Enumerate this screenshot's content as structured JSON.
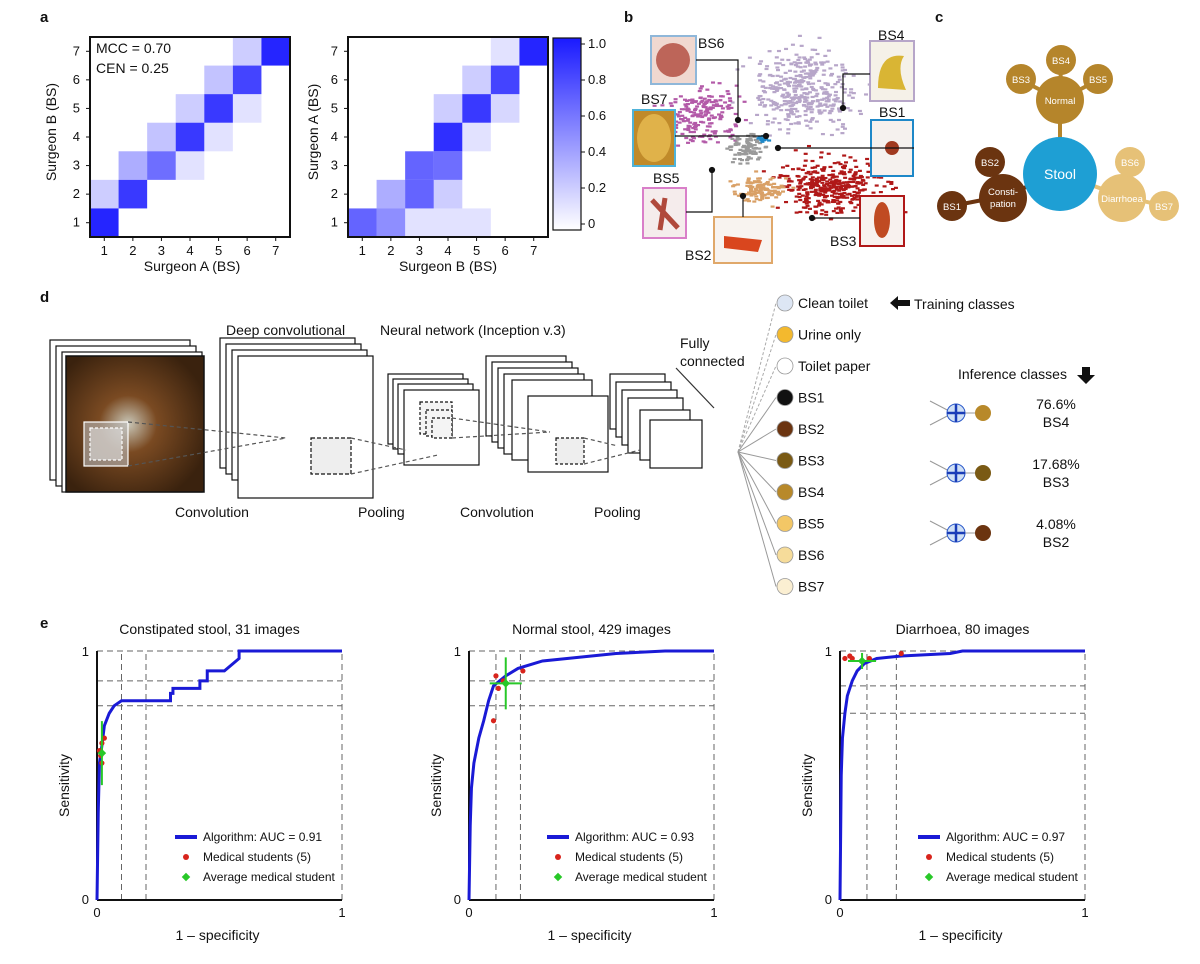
{
  "panels": {
    "a": "a",
    "b": "b",
    "c": "c",
    "d": "d",
    "e": "e"
  },
  "panel_a": {
    "heatmap_left": {
      "annotation_mcc": "MCC = 0.70",
      "annotation_cen": "CEN = 0.25",
      "xlabel": "Surgeon A (BS)",
      "ylabel": "Surgeon B (BS)",
      "ticks": [
        "1",
        "2",
        "3",
        "4",
        "5",
        "6",
        "7"
      ]
    },
    "heatmap_right": {
      "xlabel": "Surgeon B (BS)",
      "ylabel": "Surgeon A (BS)",
      "ticks": [
        "1",
        "2",
        "3",
        "4",
        "5",
        "6",
        "7"
      ]
    },
    "colorbar_ticks": [
      "1.0",
      "0.8",
      "0.6",
      "0.4",
      "0.2",
      "0"
    ],
    "accent_color": "#1a1aff"
  },
  "panel_b": {
    "labels": [
      "BS6",
      "BS4",
      "BS7",
      "BS1",
      "BS5",
      "BS2",
      "BS3"
    ],
    "cluster_colors": {
      "BS1": "#1e88c8",
      "BS2": "#d9a066",
      "BS3": "#b01818",
      "BS4": "#b7a6c9",
      "BS5": "#d97fc9",
      "BS6": "#8fb7d9",
      "BS7": "#b35aa8"
    }
  },
  "panel_c": {
    "center": "Stool",
    "normal": "Normal",
    "constipation": "Consti-\npation",
    "constipation_l1": "Consti-",
    "constipation_l2": "pation",
    "diarrhoea": "Diarrhoea",
    "normal_children": [
      "BS3",
      "BS4",
      "BS5"
    ],
    "constipation_children": [
      "BS2",
      "BS1"
    ],
    "diarrhoea_children": [
      "BS6",
      "BS7"
    ],
    "colors": {
      "center": "#1e9fd4",
      "normal": "#b5852b",
      "constipation": "#6b3410",
      "diarrhoea": "#e6c177"
    }
  },
  "panel_d": {
    "stage_labels": {
      "deep_conv": "Deep convolutional",
      "neural_net": "Neural network (Inception v.3)",
      "fully": "Fully",
      "connected": "connected",
      "convolution1": "Convolution",
      "pooling1": "Pooling",
      "convolution2": "Convolution",
      "pooling2": "Pooling"
    },
    "classes": [
      {
        "name": "Clean toilet",
        "color": "#dde6f4"
      },
      {
        "name": "Urine only",
        "color": "#f3b92e"
      },
      {
        "name": "Toilet paper",
        "color": "#ffffff"
      },
      {
        "name": "BS1",
        "color": "#111111"
      },
      {
        "name": "BS2",
        "color": "#6b3410"
      },
      {
        "name": "BS3",
        "color": "#7a5a14"
      },
      {
        "name": "BS4",
        "color": "#b8892a"
      },
      {
        "name": "BS5",
        "color": "#f3c766"
      },
      {
        "name": "BS6",
        "color": "#f6dc9a"
      },
      {
        "name": "BS7",
        "color": "#fbefd2"
      }
    ],
    "training_classes": "Training classes",
    "inference_classes": "Inference classes",
    "inference": [
      {
        "pct": "76.6%",
        "cls": "BS4",
        "color": "#b8892a"
      },
      {
        "pct": "17.68%",
        "cls": "BS3",
        "color": "#7a5a14"
      },
      {
        "pct": "4.08%",
        "cls": "BS2",
        "color": "#6b3410"
      }
    ]
  },
  "chart_data": [
    {
      "type": "line",
      "title": "Constipated stool, 31 images",
      "xlabel": "1 – specificity",
      "ylabel": "Sensitivity",
      "xlim": [
        0,
        1
      ],
      "ylim": [
        0,
        1
      ],
      "x_tick_labels": [
        "0",
        "1"
      ],
      "y_tick_labels": [
        "0",
        "1"
      ],
      "legend": [
        "Algorithm: AUC = 0.91",
        "Medical students (5)",
        "Average medical student"
      ],
      "series": [
        {
          "name": "Algorithm: AUC = 0.91",
          "x": [
            0,
            0.005,
            0.01,
            0.02,
            0.03,
            0.05,
            0.07,
            0.1,
            0.3,
            0.3,
            0.31,
            0.31,
            0.42,
            0.42,
            0.45,
            0.45,
            0.52,
            0.58,
            0.58,
            1
          ],
          "y": [
            0,
            0.35,
            0.55,
            0.62,
            0.7,
            0.75,
            0.78,
            0.8,
            0.8,
            0.83,
            0.83,
            0.85,
            0.85,
            0.88,
            0.88,
            0.92,
            0.92,
            0.97,
            1,
            1
          ]
        },
        {
          "name": "Medical students (5)",
          "x": [
            0.01,
            0.02,
            0.03,
            0.015,
            0.02
          ],
          "y": [
            0.6,
            0.63,
            0.65,
            0.58,
            0.55
          ]
        },
        {
          "name": "Average medical student",
          "x": [
            0.02
          ],
          "y": [
            0.59
          ]
        }
      ]
    },
    {
      "type": "line",
      "title": "Normal stool, 429 images",
      "xlabel": "1 – specificity",
      "ylabel": "Sensitivity",
      "xlim": [
        0,
        1
      ],
      "ylim": [
        0,
        1
      ],
      "x_tick_labels": [
        "0",
        "1"
      ],
      "y_tick_labels": [
        "0",
        "1"
      ],
      "legend": [
        "Algorithm: AUC = 0.93",
        "Medical students (5)",
        "Average medical student"
      ],
      "series": [
        {
          "name": "Algorithm: AUC = 0.93",
          "x": [
            0,
            0.005,
            0.01,
            0.02,
            0.04,
            0.06,
            0.08,
            0.1,
            0.15,
            0.2,
            0.3,
            0.4,
            0.5,
            0.6,
            0.8,
            1
          ],
          "y": [
            0,
            0.3,
            0.45,
            0.55,
            0.65,
            0.72,
            0.8,
            0.86,
            0.9,
            0.93,
            0.96,
            0.97,
            0.98,
            0.99,
            1,
            1
          ]
        },
        {
          "name": "Medical students (5)",
          "x": [
            0.11,
            0.14,
            0.22,
            0.12,
            0.1
          ],
          "y": [
            0.9,
            0.88,
            0.92,
            0.85,
            0.72
          ]
        },
        {
          "name": "Average medical student",
          "x": [
            0.15
          ],
          "y": [
            0.87
          ]
        }
      ]
    },
    {
      "type": "line",
      "title": "Diarrhoea, 80 images",
      "xlabel": "1 – specificity",
      "ylabel": "Sensitivity",
      "xlim": [
        0,
        1
      ],
      "ylim": [
        0,
        1
      ],
      "x_tick_labels": [
        "0",
        "1"
      ],
      "y_tick_labels": [
        "0",
        "1"
      ],
      "legend": [
        "Algorithm: AUC = 0.97",
        "Medical students (5)",
        "Average medical student"
      ],
      "series": [
        {
          "name": "Algorithm: AUC = 0.97",
          "x": [
            0,
            0.005,
            0.01,
            0.02,
            0.03,
            0.05,
            0.07,
            0.1,
            0.15,
            0.25,
            0.45,
            0.5,
            1
          ],
          "y": [
            0,
            0.5,
            0.65,
            0.75,
            0.82,
            0.88,
            0.92,
            0.95,
            0.97,
            0.98,
            0.99,
            1,
            1
          ]
        },
        {
          "name": "Medical students (5)",
          "x": [
            0.02,
            0.04,
            0.05,
            0.12,
            0.25
          ],
          "y": [
            0.97,
            0.98,
            0.97,
            0.97,
            0.99
          ]
        },
        {
          "name": "Average medical student",
          "x": [
            0.09
          ],
          "y": [
            0.96
          ]
        }
      ]
    }
  ]
}
